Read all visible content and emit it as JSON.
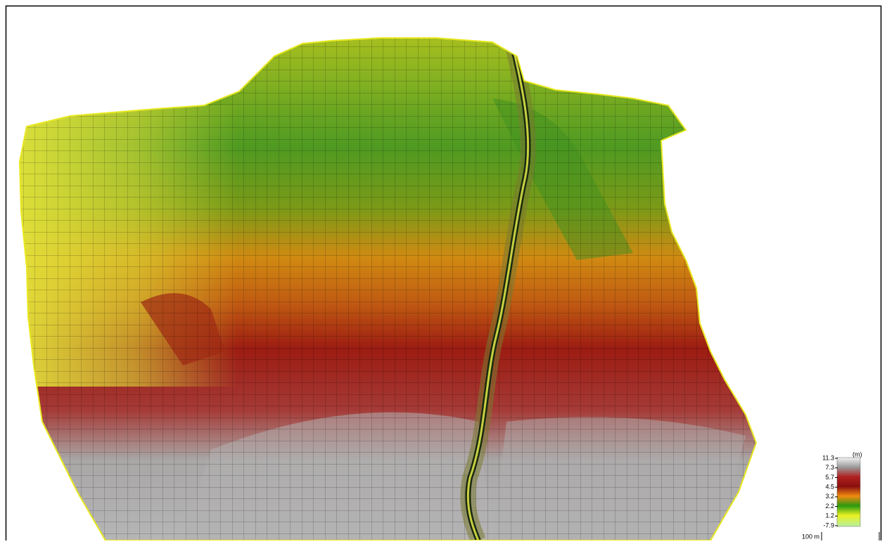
{
  "legend": {
    "unit": "(m)",
    "labels": [
      "11.3",
      "7.3",
      "5.7",
      "4.5",
      "3.2",
      "2.2",
      "1.2",
      "-7.9"
    ]
  },
  "scale_bar": "100 m"
}
